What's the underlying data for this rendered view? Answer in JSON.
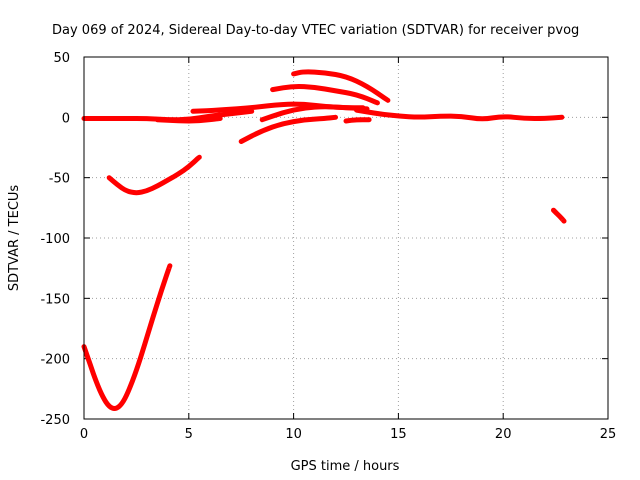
{
  "chart_data": {
    "type": "line",
    "title": "Day 069 of 2024, Sidereal Day-to-day VTEC variation (SDTVAR) for receiver pvog",
    "xlabel": "GPS time / hours",
    "ylabel": "SDTVAR / TECUs",
    "xlim": [
      0,
      25
    ],
    "ylim": [
      -250,
      50
    ],
    "xticks": [
      0,
      5,
      10,
      15,
      20,
      25
    ],
    "yticks": [
      -250,
      -200,
      -150,
      -100,
      -50,
      0,
      50
    ],
    "grid": true,
    "color": "#ff0000",
    "series": [
      {
        "name": "arc-deep",
        "x": [
          0.0,
          0.3,
          0.6,
          0.9,
          1.2,
          1.5,
          1.8,
          2.1,
          2.5,
          2.9,
          3.3,
          3.7,
          4.1
        ],
        "y": [
          -190,
          -205,
          -220,
          -232,
          -240,
          -242,
          -238,
          -228,
          -210,
          -188,
          -165,
          -143,
          -123
        ]
      },
      {
        "name": "arc-mid",
        "x": [
          1.2,
          1.6,
          2.0,
          2.5,
          3.0,
          3.5,
          4.0,
          4.5,
          5.0,
          5.5
        ],
        "y": [
          -50,
          -56,
          -61,
          -63,
          -61,
          -57,
          -52,
          -47,
          -41,
          -33
        ]
      },
      {
        "name": "arc-baseline",
        "x": [
          0.0,
          1.0,
          2.0,
          3.0,
          4.0,
          5.0,
          6.0,
          7.0,
          8.0
        ],
        "y": [
          -1,
          -1,
          -1,
          -1,
          -2,
          -2,
          1,
          3,
          5
        ]
      },
      {
        "name": "arc-low-a",
        "x": [
          3.5,
          4.5,
          5.5,
          6.5
        ],
        "y": [
          -2,
          -3,
          -3,
          -1
        ]
      },
      {
        "name": "arc-high-a",
        "x": [
          5.2,
          6.5,
          8.0,
          9.5,
          10.5,
          11.5,
          12.5,
          13.5
        ],
        "y": [
          5,
          6,
          8,
          11,
          11,
          9,
          8,
          7
        ]
      },
      {
        "name": "arc-high-b",
        "x": [
          9.0,
          10.0,
          11.0,
          12.0,
          13.0,
          14.0
        ],
        "y": [
          23,
          26,
          25,
          22,
          19,
          12
        ]
      },
      {
        "name": "arc-top",
        "x": [
          10.0,
          10.5,
          11.5,
          12.5,
          13.5,
          14.5
        ],
        "y": [
          36,
          38,
          37,
          34,
          26,
          14
        ]
      },
      {
        "name": "arc-rise",
        "x": [
          7.5,
          8.5,
          9.5,
          10.5,
          11.5,
          12.0
        ],
        "y": [
          -20,
          -11,
          -5,
          -2,
          -1,
          0
        ]
      },
      {
        "name": "arc-mid-b",
        "x": [
          8.5,
          9.5,
          10.5,
          11.5,
          12.5,
          13.3
        ],
        "y": [
          -2,
          4,
          8,
          9,
          8,
          8
        ]
      },
      {
        "name": "arc-short",
        "x": [
          12.5,
          13.0,
          13.6
        ],
        "y": [
          -3,
          -2,
          -2
        ]
      },
      {
        "name": "arc-tail",
        "x": [
          13.0,
          14.0,
          15.0,
          16.0,
          17.0,
          18.0,
          19.0,
          20.0,
          21.0,
          22.0,
          22.8
        ],
        "y": [
          6,
          3,
          1,
          0,
          1,
          1,
          -2,
          1,
          -1,
          -1,
          0
        ]
      },
      {
        "name": "arc-end",
        "x": [
          22.4,
          22.7,
          22.9
        ],
        "y": [
          -77,
          -82,
          -86
        ]
      }
    ]
  }
}
